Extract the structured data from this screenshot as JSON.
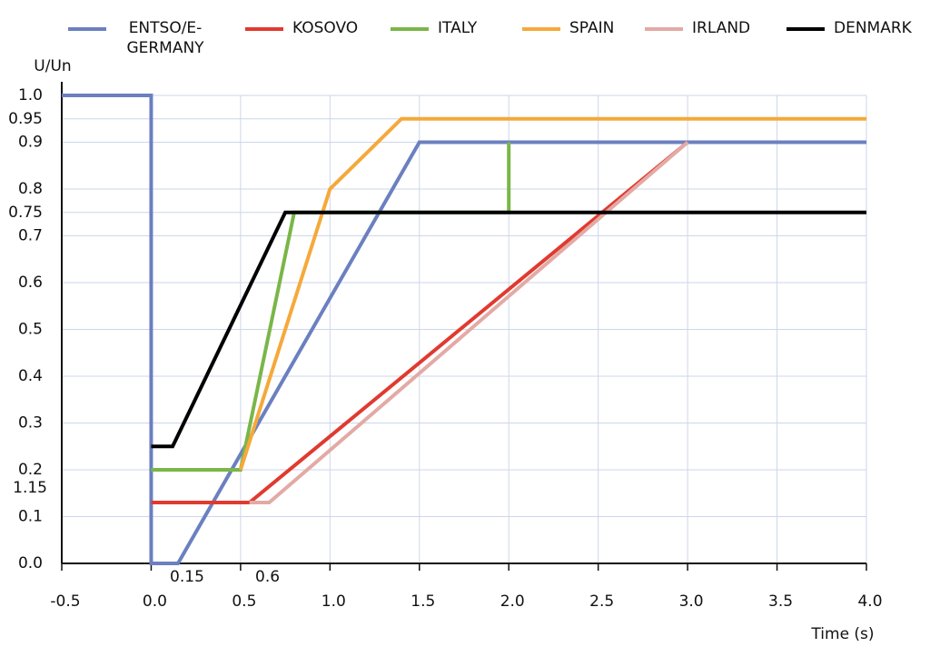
{
  "chart_data": {
    "type": "line",
    "xlabel": "Time (s)",
    "ylabel": "U/Un",
    "xlim": [
      -0.5,
      4.0
    ],
    "xticks": [
      {
        "value": -0.5,
        "label": "-0.5"
      },
      {
        "value": 0,
        "label": "0.0"
      },
      0.5,
      {
        "value": 1,
        "label": "1.0"
      },
      1.5,
      {
        "value": 2,
        "label": "2.0"
      },
      2.5,
      {
        "value": 3,
        "label": "3.0"
      },
      3.5,
      {
        "value": 4,
        "label": "4.0"
      }
    ],
    "ylim": [
      0,
      1.0
    ],
    "yticks": [
      {
        "value": 0,
        "label": "0.0"
      },
      0.1,
      0.2,
      0.3,
      0.4,
      0.5,
      0.6,
      0.7,
      0.75,
      0.8,
      0.9,
      0.95,
      {
        "value": 1,
        "label": "1.0"
      }
    ],
    "grid": true,
    "series": [
      {
        "name": "ENTSO/E-GERMANY",
        "color": "#6b80c0",
        "x": [
          -0.5,
          0,
          0,
          0.15,
          1.5,
          4.0
        ],
        "values": [
          1.0,
          1.0,
          0,
          0,
          0.9,
          0.9
        ]
      },
      {
        "name": "KOSOVO",
        "color": "#e03a2f",
        "x": [
          0,
          0.55,
          3.0
        ],
        "values": [
          0.13,
          0.13,
          0.9
        ]
      },
      {
        "name": "ITALY",
        "color": "#7ab648",
        "x": [
          0,
          0.5,
          0.8,
          2.0,
          2.0
        ],
        "values": [
          0.2,
          0.2,
          0.75,
          0.75,
          0.9
        ]
      },
      {
        "name": "SPAIN",
        "color": "#f5a93a",
        "x": [
          0.5,
          1.0,
          1.4,
          4.0
        ],
        "values": [
          0.2,
          0.8,
          0.95,
          0.95
        ]
      },
      {
        "name": "IRLAND",
        "color": "#e3aaa5",
        "x": [
          0.55,
          0.66,
          3.0
        ],
        "values": [
          0.13,
          0.13,
          0.9
        ]
      },
      {
        "name": "DENMARK",
        "color": "#000000",
        "x": [
          0,
          0.12,
          0.75,
          4.0
        ],
        "values": [
          0.25,
          0.25,
          0.75,
          0.75
        ]
      }
    ],
    "annotations": [
      {
        "text": "0.15",
        "x": 0.15,
        "y": 0
      },
      {
        "text": "0.6",
        "x": 0.6,
        "y": 0
      },
      {
        "text": "1.15",
        "x": -0.5,
        "y": 0.15
      }
    ]
  }
}
